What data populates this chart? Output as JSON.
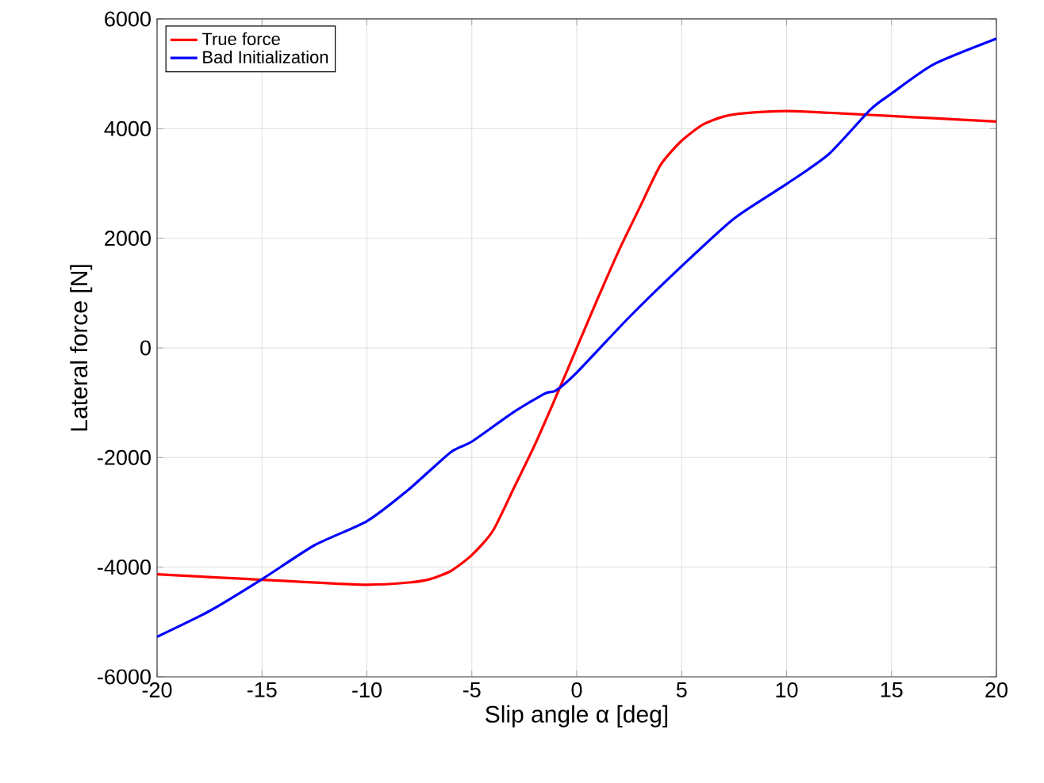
{
  "chart_data": {
    "type": "line",
    "xlabel": "Slip angle α [deg]",
    "ylabel": "Lateral force [N]",
    "xlim": [
      -20,
      20
    ],
    "ylim": [
      -6000,
      6000
    ],
    "xticks": [
      -20,
      -15,
      -10,
      -5,
      0,
      5,
      10,
      15,
      20
    ],
    "yticks": [
      -6000,
      -4000,
      -2000,
      0,
      2000,
      4000,
      6000
    ],
    "grid": true,
    "legend": "top left",
    "line_style": "solid",
    "series": [
      {
        "name": "True force",
        "color": "#ff0000",
        "x": [
          -20,
          -18,
          -16,
          -14,
          -12,
          -10,
          -8,
          -7,
          -6,
          -5,
          -4,
          -3,
          -2,
          -1,
          0,
          1,
          2,
          3,
          4,
          5,
          6,
          7,
          8,
          10,
          12,
          14,
          16,
          18,
          20
        ],
        "values": [
          -4130,
          -4170,
          -4210,
          -4250,
          -4290,
          -4320,
          -4280,
          -4220,
          -4070,
          -3780,
          -3340,
          -2560,
          -1770,
          -900,
          0,
          900,
          1770,
          2560,
          3340,
          3780,
          4070,
          4220,
          4280,
          4320,
          4290,
          4250,
          4210,
          4170,
          4130
        ]
      },
      {
        "name": "Bad Initialization",
        "color": "#0000ff",
        "x": [
          -20,
          -17.5,
          -15,
          -12.5,
          -10,
          -8,
          -6,
          -5,
          -3,
          -1.5,
          -1,
          0,
          2.5,
          5,
          7.5,
          10,
          12,
          14,
          15,
          17,
          20
        ],
        "values": [
          -5270,
          -4800,
          -4220,
          -3600,
          -3160,
          -2580,
          -1900,
          -1710,
          -1170,
          -830,
          -780,
          -450,
          560,
          1490,
          2360,
          2990,
          3530,
          4350,
          4640,
          5170,
          5640
        ]
      }
    ]
  }
}
